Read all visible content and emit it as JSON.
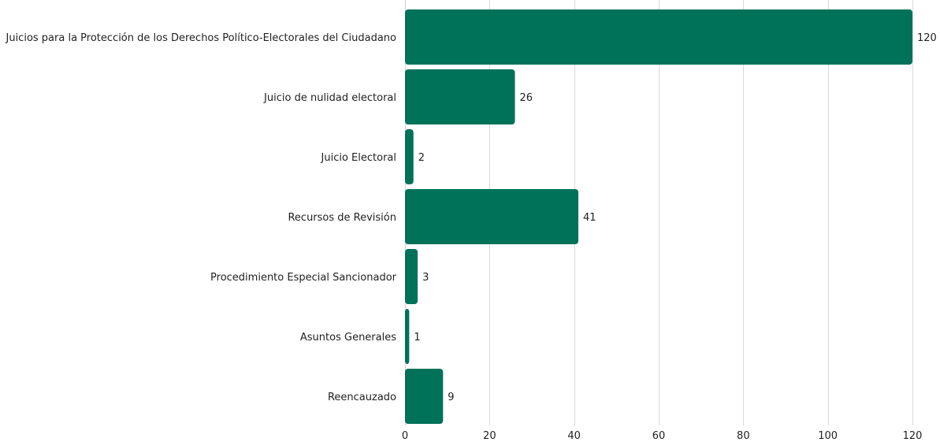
{
  "chart_data": {
    "type": "bar",
    "orientation": "horizontal",
    "title": "",
    "xlabel": "",
    "ylabel": "",
    "categories": [
      "Juicios para la Protección de los Derechos Político-Electorales del Ciudadano",
      "Juicio de nulidad electoral",
      "Juicio Electoral",
      "Recursos de Revisión",
      "Procedimiento Especial Sancionador",
      "Asuntos Generales",
      "Reencauzado"
    ],
    "values": [
      120,
      26,
      2,
      41,
      3,
      1,
      9
    ],
    "xlim": [
      0,
      120
    ],
    "xticks": [
      0,
      20,
      40,
      60,
      80,
      100,
      120
    ],
    "grid": "vertical",
    "legend": "none",
    "bar_color": "#00725A"
  }
}
